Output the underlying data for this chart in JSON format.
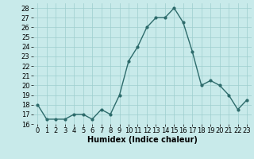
{
  "x": [
    0,
    1,
    2,
    3,
    4,
    5,
    6,
    7,
    8,
    9,
    10,
    11,
    12,
    13,
    14,
    15,
    16,
    17,
    18,
    19,
    20,
    21,
    22,
    23
  ],
  "y": [
    18,
    16.5,
    16.5,
    16.5,
    17,
    17,
    16.5,
    17.5,
    17,
    19,
    22.5,
    24,
    26,
    27,
    27,
    28,
    26.5,
    23.5,
    20,
    20.5,
    20,
    19,
    17.5,
    18.5
  ],
  "line_color": "#2d6b6b",
  "marker_color": "#2d6b6b",
  "bg_color": "#c8eaea",
  "grid_color": "#9ecece",
  "xlabel": "Humidex (Indice chaleur)",
  "xlim": [
    -0.5,
    23.5
  ],
  "ylim": [
    16,
    28.5
  ],
  "yticks": [
    16,
    17,
    18,
    19,
    20,
    21,
    22,
    23,
    24,
    25,
    26,
    27,
    28
  ],
  "xticks": [
    0,
    1,
    2,
    3,
    4,
    5,
    6,
    7,
    8,
    9,
    10,
    11,
    12,
    13,
    14,
    15,
    16,
    17,
    18,
    19,
    20,
    21,
    22,
    23
  ],
  "xlabel_fontsize": 7,
  "tick_fontsize": 6,
  "linewidth": 1.0,
  "markersize": 2.0
}
